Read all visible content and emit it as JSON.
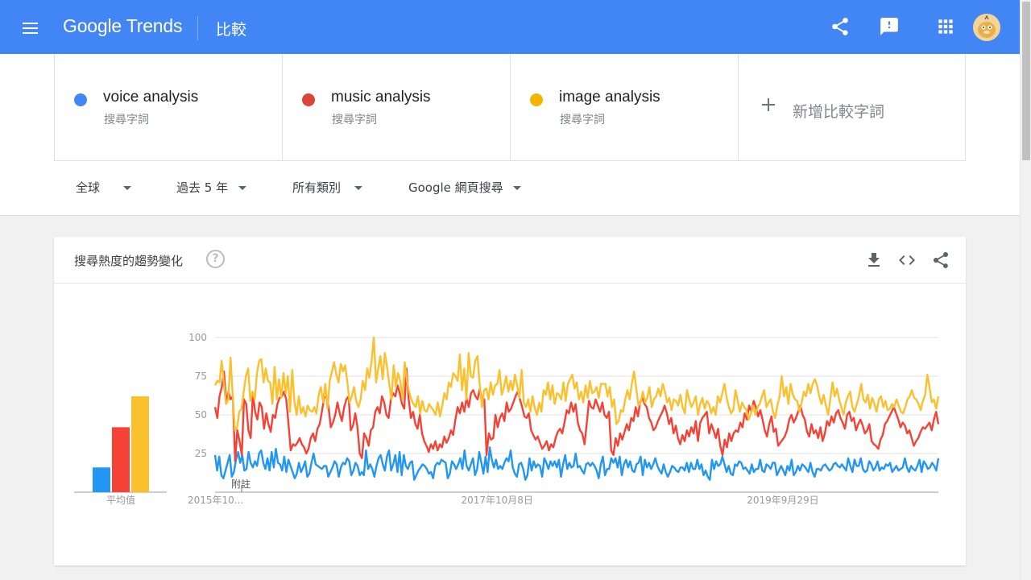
{
  "header": {
    "logo_text": "Google Trends",
    "page_title": "比較",
    "icons": [
      "menu-icon",
      "share-icon",
      "feedback-icon",
      "apps-icon",
      "avatar"
    ]
  },
  "terms": [
    {
      "name": "voice analysis",
      "sub": "搜尋字詞",
      "color": "#4285f4"
    },
    {
      "name": "music analysis",
      "sub": "搜尋字詞",
      "color": "#db4437"
    },
    {
      "name": "image analysis",
      "sub": "搜尋字詞",
      "color": "#f4b400"
    }
  ],
  "add_term_label": "新增比較字詞",
  "filters": {
    "region": "全球",
    "time": "過去 5 年",
    "category": "所有類別",
    "search_type": "Google 網頁搜尋"
  },
  "card": {
    "title": "搜尋熱度的趨勢變化",
    "help": "?"
  },
  "chart_data": {
    "type": "line",
    "y_ticks": [
      "100",
      "75",
      "50",
      "25"
    ],
    "ylim": [
      0,
      100
    ],
    "x_tick_labels": [
      "2015年10...",
      "2017年10月8日",
      "2019年9月29日"
    ],
    "note_label": "附註",
    "average_label": "平均值",
    "average_bars": [
      {
        "term": "voice analysis",
        "value": 16,
        "color": "#2196f3"
      },
      {
        "term": "music analysis",
        "value": 42,
        "color": "#f44336"
      },
      {
        "term": "image analysis",
        "value": 62,
        "color": "#fbc02d"
      }
    ],
    "series": [
      {
        "name": "voice analysis",
        "color": "#2196f3",
        "values": [
          24,
          14,
          23,
          11,
          9,
          14,
          19,
          24,
          10,
          13,
          21,
          26,
          19,
          24,
          14,
          15,
          26,
          19,
          16,
          20,
          17,
          25,
          27,
          19,
          15,
          22,
          14,
          26,
          16,
          28,
          19,
          18,
          14,
          23,
          13,
          21,
          17,
          13,
          9,
          12,
          19,
          13,
          16,
          20,
          10,
          12,
          19,
          25,
          18,
          17,
          16,
          15,
          17,
          17,
          10,
          13,
          16,
          20,
          18,
          10,
          16,
          19,
          18,
          22,
          20,
          11,
          14,
          19,
          17,
          11,
          13,
          11,
          27,
          15,
          18,
          15,
          10,
          17,
          22,
          24,
          18,
          14,
          23,
          27,
          14,
          18,
          24,
          13,
          26,
          11,
          24,
          17,
          15,
          19,
          20,
          8,
          11,
          14,
          16,
          18,
          17,
          15,
          12,
          13,
          9,
          17,
          19,
          18,
          21,
          20,
          19,
          9,
          12,
          20,
          18,
          15,
          18,
          22,
          15,
          27,
          17,
          14,
          18,
          22,
          11,
          15,
          26,
          19,
          12,
          23,
          13,
          29,
          21,
          16,
          21,
          15,
          17,
          15,
          19,
          22,
          20,
          27,
          16,
          12,
          10,
          18,
          19,
          15,
          8,
          11,
          22,
          14,
          20,
          16,
          18,
          17,
          10,
          22,
          19,
          15,
          20,
          17,
          20,
          16,
          21,
          10,
          18,
          24,
          15,
          19,
          16,
          17,
          25,
          16,
          17,
          14,
          12,
          18,
          19,
          17,
          19,
          17,
          14,
          9,
          18,
          23,
          11,
          15,
          15,
          22,
          19,
          22,
          16,
          23,
          11,
          18,
          21,
          16,
          20,
          14,
          13,
          18,
          19,
          23,
          11,
          21,
          16,
          19,
          15,
          18,
          22,
          17,
          14,
          12,
          18,
          13,
          10,
          13,
          17,
          16,
          14,
          13,
          16,
          16,
          14,
          19,
          13,
          19,
          15,
          15,
          21,
          15,
          18,
          11,
          14,
          10,
          8,
          21,
          15,
          20,
          17,
          18,
          23,
          18,
          13,
          17,
          12,
          11,
          18,
          17,
          20,
          19,
          15,
          16,
          14,
          12,
          18,
          13,
          15,
          15,
          21,
          14,
          13,
          18,
          17,
          15,
          19,
          19,
          11,
          14,
          17,
          14,
          11,
          17,
          14,
          21,
          11,
          13,
          17,
          14,
          18,
          17,
          15,
          13,
          19,
          13,
          10,
          15,
          15,
          14,
          17,
          18,
          16,
          14,
          15,
          18,
          19,
          17,
          16,
          18,
          16,
          14,
          22,
          17,
          13,
          21,
          17,
          17,
          22,
          15,
          13,
          14,
          20,
          18,
          14,
          16,
          20,
          14,
          16,
          15,
          18,
          17,
          19,
          13,
          15,
          17,
          14,
          15,
          16,
          22,
          16,
          13,
          17,
          15,
          14,
          17,
          21,
          13,
          20,
          18,
          15,
          16,
          19,
          17,
          14,
          22
        ]
      },
      {
        "name": "music analysis",
        "color": "#f44336",
        "values": [
          55,
          48,
          62,
          68,
          78,
          58,
          65,
          60,
          62,
          20,
          40,
          33,
          24,
          60,
          57,
          40,
          35,
          64,
          52,
          47,
          58,
          55,
          41,
          51,
          44,
          39,
          50,
          48,
          57,
          61,
          62,
          65,
          60,
          44,
          27,
          31,
          30,
          32,
          35,
          31,
          29,
          25,
          28,
          35,
          38,
          33,
          41,
          44,
          52,
          61,
          62,
          55,
          42,
          45,
          50,
          58,
          51,
          46,
          55,
          60,
          62,
          40,
          43,
          51,
          42,
          25,
          22,
          38,
          35,
          30,
          40,
          42,
          52,
          55,
          51,
          62,
          58,
          50,
          48,
          60,
          64,
          62,
          69,
          64,
          57,
          54,
          80,
          60,
          48,
          52,
          44,
          41,
          50,
          38,
          33,
          30,
          26,
          31,
          28,
          33,
          27,
          31,
          29,
          36,
          32,
          35,
          40,
          37,
          47,
          55,
          51,
          58,
          52,
          61,
          55,
          64,
          66,
          62,
          60,
          67,
          58,
          60,
          24,
          38,
          34,
          35,
          50,
          42,
          48,
          51,
          46,
          58,
          52,
          54,
          58,
          62,
          65,
          60,
          55,
          49,
          48,
          51,
          40,
          37,
          34,
          36,
          32,
          28,
          30,
          33,
          27,
          31,
          29,
          35,
          39,
          41,
          38,
          45,
          53,
          51,
          58,
          52,
          57,
          45,
          40,
          38,
          31,
          44,
          59,
          55,
          54,
          60,
          56,
          52,
          58,
          50,
          48,
          52,
          27,
          24,
          35,
          30,
          38,
          34,
          39,
          44,
          40,
          48,
          46,
          55,
          49,
          58,
          61,
          57,
          55,
          48,
          45,
          40,
          42,
          46,
          49,
          52,
          56,
          51,
          44,
          48,
          38,
          43,
          35,
          31,
          37,
          33,
          40,
          36,
          42,
          38,
          46,
          33,
          45,
          48,
          50,
          52,
          38,
          44,
          40,
          35,
          41,
          30,
          24,
          34,
          29,
          38,
          33,
          38,
          40,
          39,
          45,
          42,
          51,
          47,
          56,
          52,
          59,
          55,
          49,
          53,
          47,
          40,
          36,
          44,
          49,
          39,
          41,
          30,
          32,
          34,
          36,
          40,
          47,
          50,
          45,
          48,
          52,
          56,
          50,
          47,
          39,
          36,
          44,
          38,
          40,
          35,
          42,
          33,
          38,
          46,
          43,
          49,
          45,
          51,
          53,
          48,
          45,
          41,
          50,
          52,
          46,
          48,
          40,
          44,
          47,
          43,
          38,
          40,
          44,
          33,
          31,
          30,
          28,
          34,
          37,
          44,
          46,
          49,
          52,
          55,
          51,
          47,
          42,
          45,
          43,
          38,
          40,
          35,
          30,
          33,
          35,
          39,
          42,
          41,
          43,
          45,
          40,
          47,
          52,
          44
        ]
      },
      {
        "name": "image analysis",
        "color": "#fbc02d",
        "values": [
          69,
          72,
          71,
          85,
          70,
          57,
          60,
          87,
          63,
          40,
          42,
          52,
          54,
          65,
          75,
          80,
          59,
          65,
          60,
          77,
          85,
          86,
          71,
          80,
          72,
          71,
          57,
          81,
          60,
          73,
          61,
          77,
          64,
          75,
          52,
          79,
          58,
          50,
          62,
          51,
          55,
          49,
          56,
          53,
          52,
          55,
          51,
          63,
          68,
          58,
          70,
          54,
          72,
          78,
          84,
          76,
          71,
          83,
          78,
          82,
          71,
          58,
          62,
          68,
          59,
          55,
          60,
          72,
          66,
          80,
          74,
          85,
          100,
          71,
          80,
          88,
          73,
          90,
          81,
          70,
          60,
          82,
          68,
          77,
          72,
          60,
          84,
          72,
          65,
          60,
          57,
          55,
          62,
          51,
          59,
          53,
          52,
          57,
          55,
          53,
          50,
          58,
          49,
          56,
          64,
          60,
          71,
          68,
          77,
          75,
          72,
          89,
          66,
          80,
          60,
          90,
          75,
          74,
          85,
          88,
          70,
          55,
          66,
          67,
          60,
          71,
          63,
          69,
          70,
          79,
          63,
          68,
          75,
          65,
          72,
          66,
          76,
          69,
          61,
          79,
          58,
          55,
          60,
          52,
          62,
          54,
          50,
          58,
          52,
          66,
          63,
          71,
          60,
          69,
          57,
          64,
          63,
          60,
          71,
          59,
          70,
          73,
          76,
          67,
          71,
          60,
          65,
          58,
          69,
          61,
          72,
          64,
          65,
          68,
          61,
          70,
          70,
          70,
          62,
          68,
          55,
          60,
          44,
          46,
          53,
          52,
          60,
          66,
          60,
          70,
          78,
          67,
          56,
          58,
          65,
          58,
          61,
          68,
          55,
          60,
          62,
          67,
          62,
          70,
          65,
          58,
          61,
          53,
          60,
          59,
          56,
          63,
          55,
          51,
          66,
          60,
          55,
          58,
          62,
          50,
          57,
          61,
          54,
          59,
          57,
          51,
          55,
          50,
          62,
          58,
          64,
          70,
          61,
          55,
          51,
          53,
          66,
          59,
          52,
          58,
          55,
          53,
          47,
          51,
          56,
          50,
          55,
          57,
          62,
          66,
          55,
          58,
          60,
          52,
          48,
          56,
          62,
          75,
          62,
          68,
          57,
          70,
          63,
          60,
          59,
          52,
          58,
          65,
          62,
          70,
          64,
          70,
          73,
          69,
          62,
          57,
          63,
          56,
          50,
          60,
          71,
          62,
          67,
          60,
          55,
          50,
          58,
          62,
          65,
          55,
          52,
          57,
          62,
          70,
          60,
          58,
          63,
          54,
          61,
          57,
          52,
          60,
          62,
          55,
          59,
          53,
          54,
          57,
          55,
          60,
          56,
          52,
          51,
          55,
          60,
          62,
          66,
          61,
          60,
          57,
          53,
          59,
          63,
          76,
          68,
          58,
          60,
          54,
          62
        ]
      }
    ]
  }
}
